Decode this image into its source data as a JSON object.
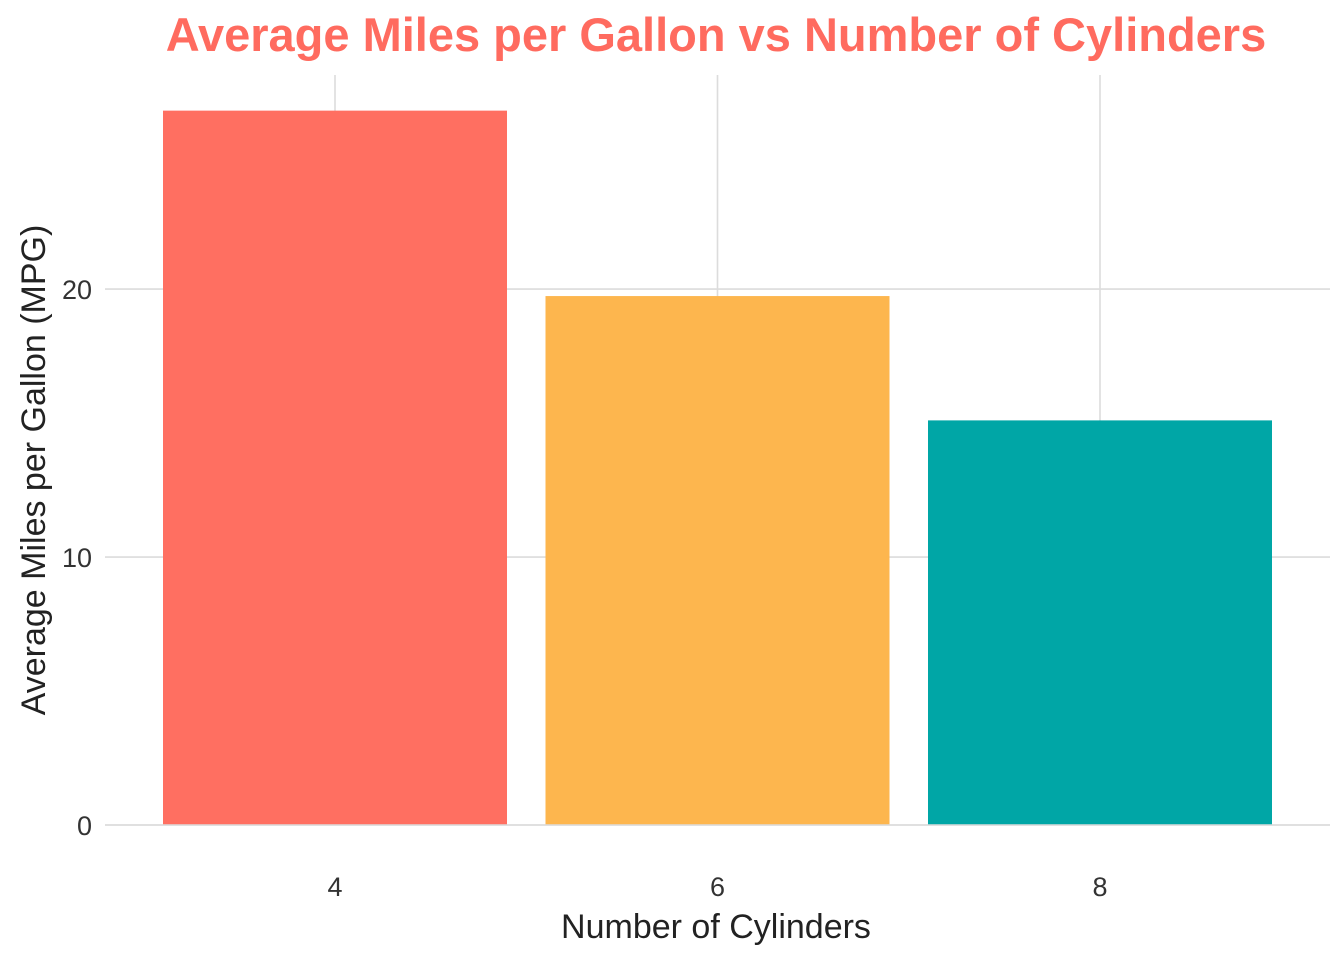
{
  "chart_data": {
    "type": "bar",
    "title": "Average Miles per Gallon vs Number of Cylinders",
    "xlabel": "Number of Cylinders",
    "ylabel": "Average Miles per Gallon (MPG)",
    "categories": [
      "4",
      "6",
      "8"
    ],
    "values": [
      26.66,
      19.74,
      15.1
    ],
    "ylim": [
      0,
      27.99
    ],
    "y_ticks": [
      0,
      10,
      20
    ],
    "grid": true,
    "legend": "none",
    "colors": {
      "title": "#FF6B5F",
      "bars": [
        "#FF6F61",
        "#FDB64E",
        "#00A6A6"
      ],
      "grid": "#DCDCDC"
    }
  }
}
